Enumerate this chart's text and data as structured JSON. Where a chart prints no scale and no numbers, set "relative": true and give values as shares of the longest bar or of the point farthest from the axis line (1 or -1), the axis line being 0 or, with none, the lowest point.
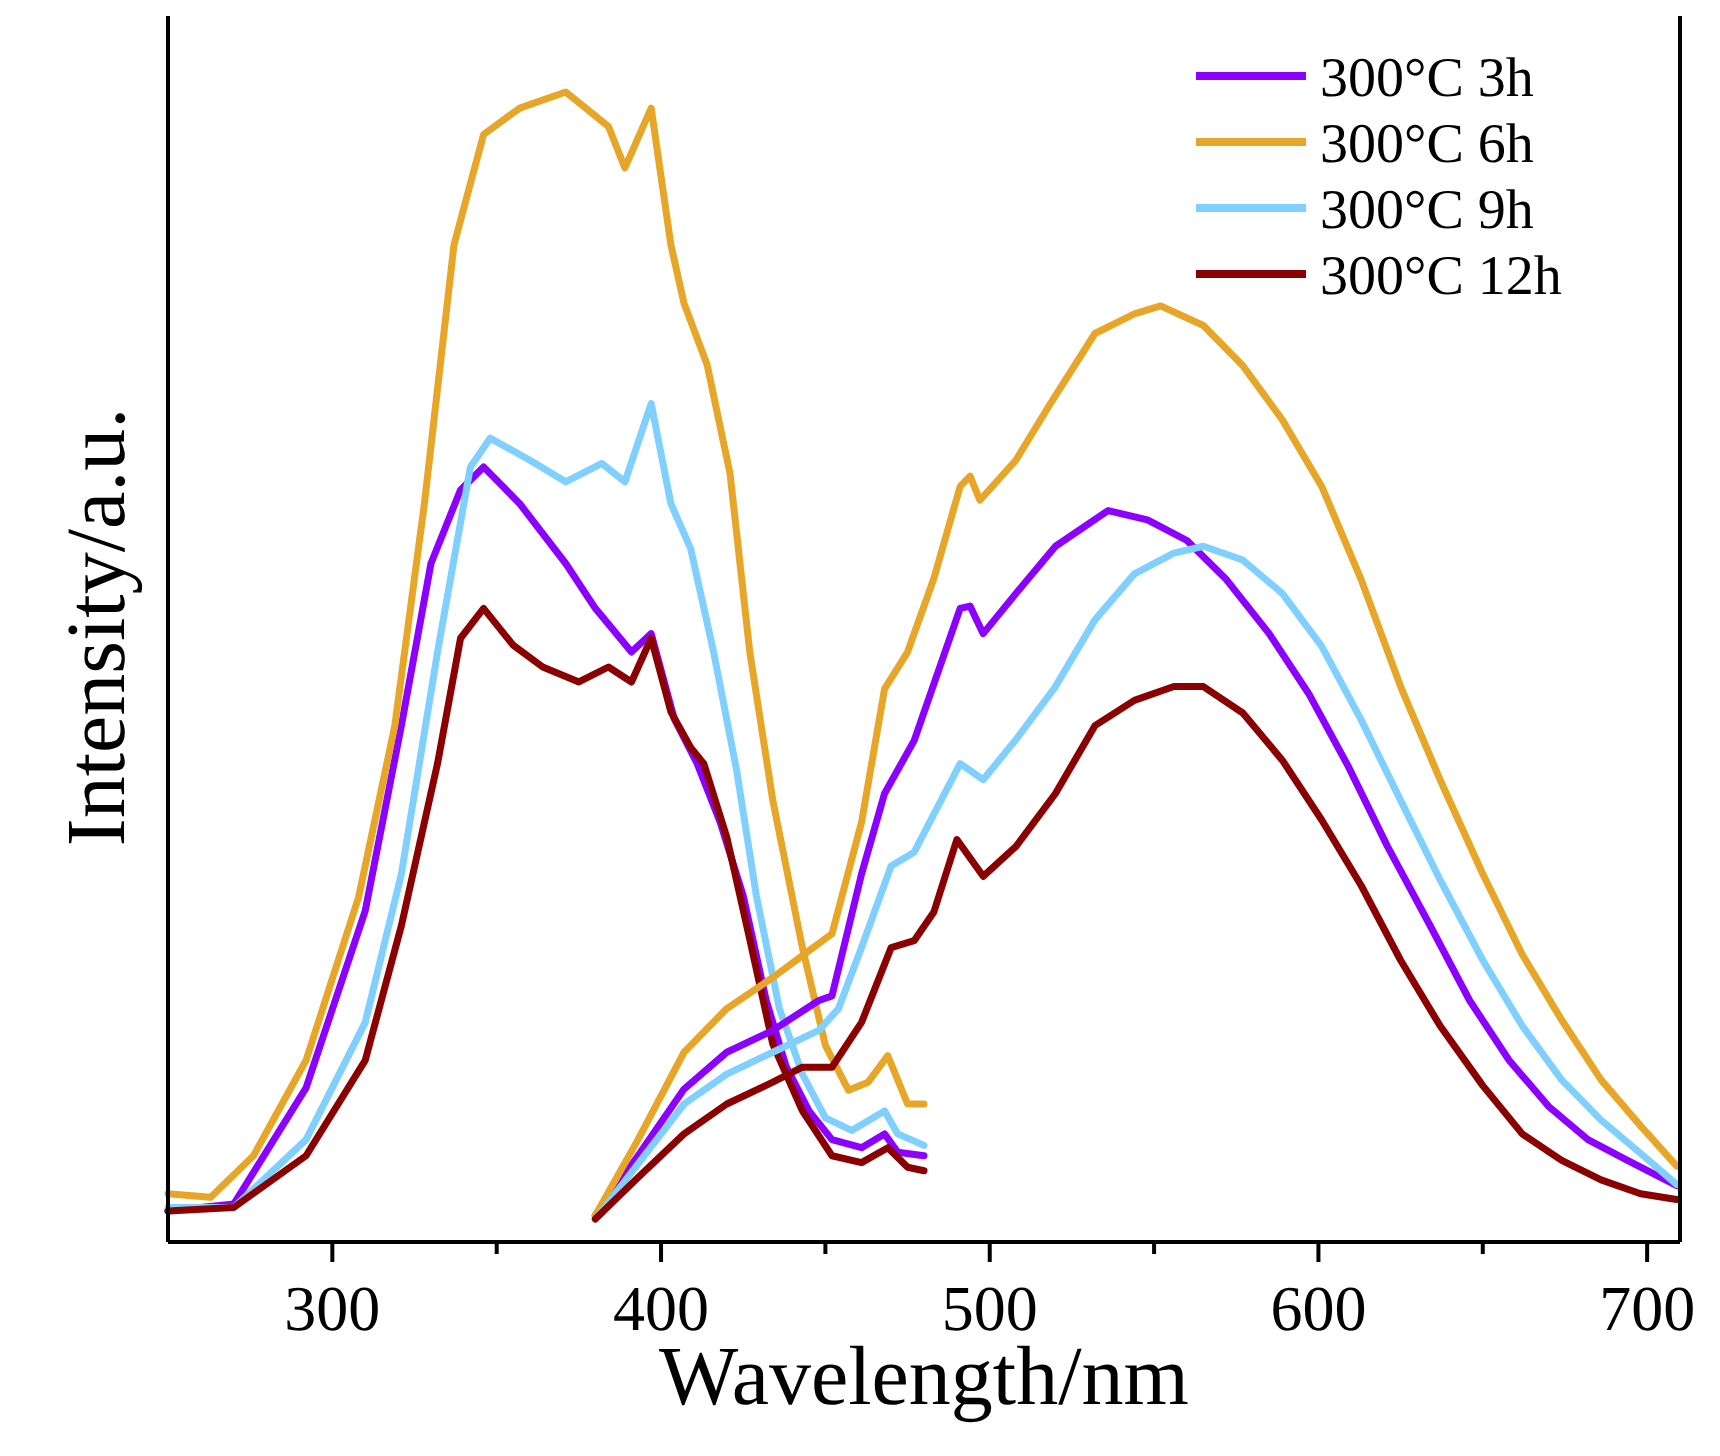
{
  "chart_data": {
    "type": "line",
    "xlabel": "Wavelength/nm",
    "ylabel": "Intensity/a.u.",
    "relative": true,
    "xlim": [
      250,
      710
    ],
    "xticks": [
      300,
      {
        "value": 350,
        "label": null
      },
      400,
      {
        "value": 450,
        "label": null
      },
      500,
      {
        "value": 550,
        "label": null
      },
      600,
      {
        "value": 650,
        "label": null
      },
      700
    ],
    "legend": "top right",
    "grid": false,
    "marker": "none",
    "line_style": "solid",
    "series": [
      {
        "name": "300°C 3h",
        "color": "#8b00ff",
        "x": [
          250,
          270,
          292,
          310,
          321,
          330,
          339,
          346,
          357,
          371,
          380,
          391,
          397,
          404,
          411,
          418,
          425,
          432,
          438,
          445,
          452,
          461,
          468,
          472,
          480
        ],
        "values": [
          0.027,
          0.033,
          0.134,
          0.288,
          0.449,
          0.59,
          0.654,
          0.674,
          0.642,
          0.59,
          0.551,
          0.513,
          0.529,
          0.455,
          0.416,
          0.365,
          0.301,
          0.21,
          0.153,
          0.114,
          0.089,
          0.082,
          0.094,
          0.078,
          0.075
        ]
      },
      {
        "name": "300°C 6h",
        "color": "#e8a628",
        "x": [
          250,
          263,
          276,
          292,
          308,
          319,
          328,
          337,
          346,
          357,
          371,
          384,
          389,
          397,
          403,
          407,
          414,
          421,
          427,
          434,
          443,
          450,
          457,
          463,
          469,
          475,
          480
        ],
        "values": [
          0.042,
          0.039,
          0.075,
          0.158,
          0.3,
          0.449,
          0.642,
          0.867,
          0.963,
          0.986,
          1,
          0.97,
          0.934,
          0.986,
          0.867,
          0.816,
          0.763,
          0.668,
          0.513,
          0.384,
          0.256,
          0.171,
          0.132,
          0.139,
          0.162,
          0.12,
          0.12
        ]
      },
      {
        "name": "300°C 9h",
        "color": "#80d0ff",
        "x": [
          250,
          270,
          292,
          310,
          321,
          332,
          342,
          348,
          360,
          371,
          382,
          389,
          397,
          403,
          409,
          416,
          423,
          429,
          436,
          443,
          450,
          458,
          468,
          472,
          480
        ],
        "values": [
          0.03,
          0.03,
          0.089,
          0.191,
          0.32,
          0.513,
          0.674,
          0.699,
          0.68,
          0.661,
          0.677,
          0.661,
          0.729,
          0.642,
          0.603,
          0.513,
          0.41,
          0.301,
          0.203,
          0.146,
          0.108,
          0.097,
          0.114,
          0.094,
          0.084
        ]
      },
      {
        "name": "300°C 12h",
        "color": "#8b0000",
        "x": [
          250,
          270,
          292,
          310,
          321,
          332,
          339,
          346,
          355,
          364,
          375,
          384,
          391,
          397,
          403,
          409,
          413,
          420,
          427,
          434,
          443,
          452,
          461,
          469,
          475,
          480
        ],
        "values": [
          0.027,
          0.03,
          0.075,
          0.158,
          0.275,
          0.416,
          0.525,
          0.551,
          0.519,
          0.5,
          0.487,
          0.5,
          0.487,
          0.525,
          0.461,
          0.43,
          0.416,
          0.352,
          0.263,
          0.172,
          0.114,
          0.075,
          0.069,
          0.082,
          0.065,
          0.062
        ]
      },
      {
        "color": "#8b00ff",
        "x": [
          380,
          393,
          407,
          420,
          434,
          448,
          452,
          461,
          468,
          477,
          491,
          494,
          498,
          508,
          520,
          536,
          548,
          560,
          572,
          585,
          597,
          609,
          621,
          634,
          646,
          658,
          670,
          682,
          694,
          709
        ],
        "values": [
          0.023,
          0.075,
          0.133,
          0.165,
          0.184,
          0.21,
          0.214,
          0.32,
          0.39,
          0.436,
          0.551,
          0.553,
          0.529,
          0.564,
          0.605,
          0.636,
          0.628,
          0.61,
          0.576,
          0.529,
          0.477,
          0.414,
          0.344,
          0.275,
          0.21,
          0.158,
          0.118,
          0.089,
          0.071,
          0.049
        ]
      },
      {
        "color": "#e8a628",
        "x": [
          380,
          393,
          407,
          420,
          434,
          443,
          452,
          461,
          468,
          475,
          483,
          491,
          494,
          497,
          508,
          518,
          532,
          544,
          552,
          565,
          577,
          589,
          601,
          613,
          625,
          637,
          650,
          662,
          674,
          686,
          698,
          709
        ],
        "values": [
          0.023,
          0.089,
          0.165,
          0.203,
          0.23,
          0.249,
          0.268,
          0.365,
          0.481,
          0.513,
          0.577,
          0.657,
          0.666,
          0.645,
          0.68,
          0.727,
          0.79,
          0.807,
          0.814,
          0.797,
          0.762,
          0.715,
          0.657,
          0.576,
          0.483,
          0.402,
          0.32,
          0.25,
          0.193,
          0.141,
          0.101,
          0.066
        ]
      },
      {
        "color": "#80d0ff",
        "x": [
          381,
          393,
          407,
          420,
          434,
          448,
          454,
          461,
          470,
          477,
          491,
          498,
          508,
          520,
          532,
          544,
          556,
          565,
          577,
          589,
          601,
          613,
          625,
          637,
          650,
          662,
          674,
          686,
          698,
          709
        ],
        "values": [
          0.023,
          0.068,
          0.12,
          0.146,
          0.165,
          0.184,
          0.203,
          0.256,
          0.327,
          0.339,
          0.416,
          0.402,
          0.437,
          0.483,
          0.541,
          0.581,
          0.599,
          0.605,
          0.593,
          0.564,
          0.518,
          0.454,
          0.384,
          0.315,
          0.245,
          0.188,
          0.141,
          0.106,
          0.077,
          0.05
        ]
      },
      {
        "color": "#8b0000",
        "x": [
          380,
          393,
          407,
          420,
          434,
          443,
          452,
          461,
          470,
          477,
          483,
          490,
          498,
          508,
          520,
          532,
          544,
          556,
          565,
          577,
          589,
          601,
          613,
          625,
          637,
          650,
          662,
          674,
          686,
          698,
          709
        ],
        "values": [
          0.02,
          0.056,
          0.094,
          0.12,
          0.139,
          0.152,
          0.152,
          0.191,
          0.256,
          0.262,
          0.287,
          0.35,
          0.318,
          0.344,
          0.39,
          0.449,
          0.471,
          0.483,
          0.483,
          0.46,
          0.419,
          0.367,
          0.31,
          0.245,
          0.188,
          0.136,
          0.094,
          0.071,
          0.054,
          0.042,
          0.037
        ]
      }
    ]
  }
}
